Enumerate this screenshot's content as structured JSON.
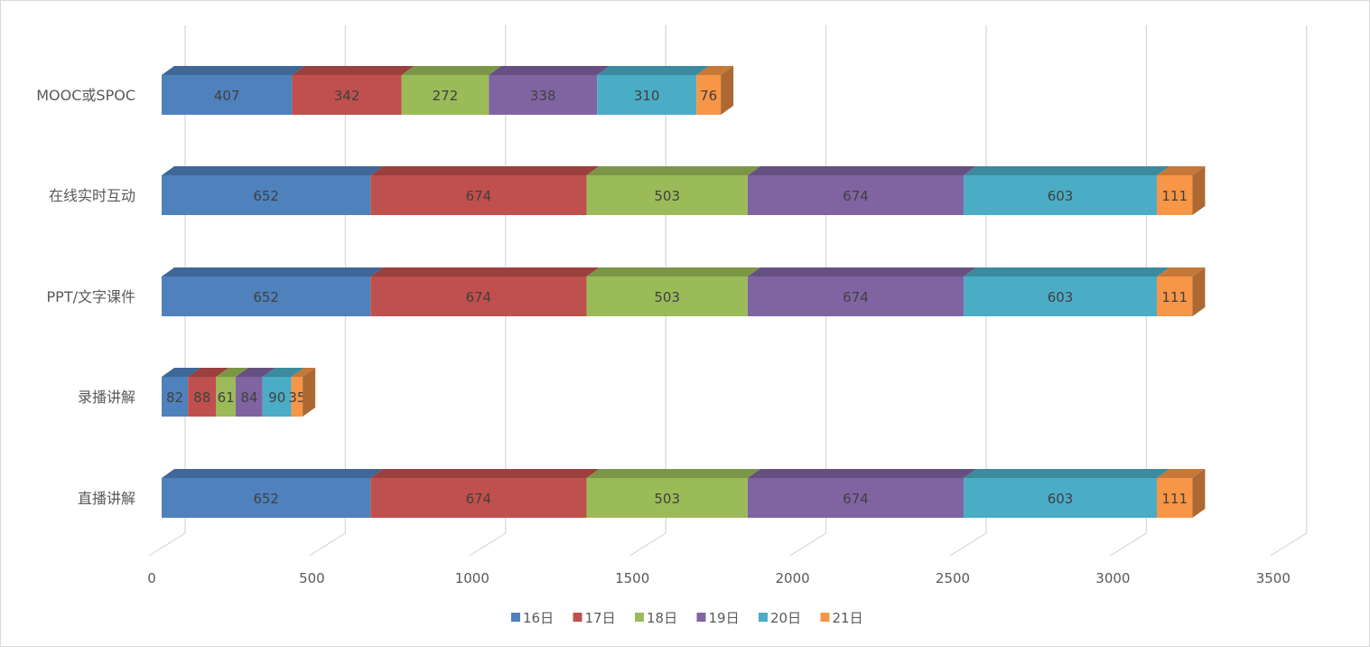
{
  "chart_data": {
    "type": "bar",
    "orientation": "horizontal",
    "stacked": true,
    "style": "3d",
    "title": "",
    "xlabel": "",
    "ylabel": "",
    "xlim": [
      0,
      3500
    ],
    "x_ticks": [
      "0",
      "500",
      "1000",
      "1500",
      "2000",
      "2500",
      "3000",
      "3500"
    ],
    "grid": true,
    "legend_position": "bottom",
    "categories": [
      "MOOC或SPOC",
      "在线实时互动",
      "PPT/文字课件",
      "录播讲解",
      "直播讲解"
    ],
    "series": [
      {
        "name": "16日",
        "color": "#4F81BD",
        "values": [
          407,
          652,
          652,
          82,
          652
        ]
      },
      {
        "name": "17日",
        "color": "#C0504D",
        "values": [
          342,
          674,
          674,
          88,
          674
        ]
      },
      {
        "name": "18日",
        "color": "#9BBB59",
        "values": [
          272,
          503,
          503,
          61,
          503
        ]
      },
      {
        "name": "19日",
        "color": "#8064A2",
        "values": [
          338,
          674,
          674,
          84,
          674
        ]
      },
      {
        "name": "20日",
        "color": "#4BACC6",
        "values": [
          310,
          603,
          603,
          90,
          603
        ]
      },
      {
        "name": "21日",
        "color": "#F79646",
        "values": [
          76,
          111,
          111,
          35,
          111
        ]
      }
    ]
  }
}
